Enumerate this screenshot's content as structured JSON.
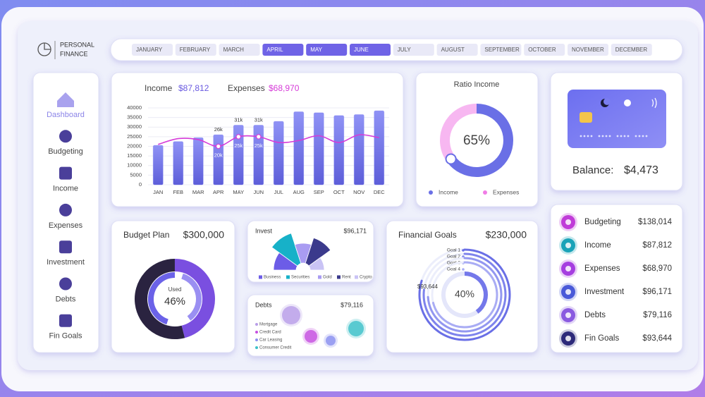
{
  "header": {
    "title_line1": "PERSONAL",
    "title_line2": "FINANCE"
  },
  "months": [
    {
      "label": "JANUARY",
      "selected": false
    },
    {
      "label": "FEBRUARY",
      "selected": false
    },
    {
      "label": "MARCH",
      "selected": false
    },
    {
      "label": "APRIL",
      "selected": true
    },
    {
      "label": "MAY",
      "selected": true
    },
    {
      "label": "JUNE",
      "selected": true
    },
    {
      "label": "JULY",
      "selected": false
    },
    {
      "label": "AUGUST",
      "selected": false
    },
    {
      "label": "SEPTEMBER",
      "selected": false
    },
    {
      "label": "OCTOBER",
      "selected": false
    },
    {
      "label": "NOVEMBER",
      "selected": false
    },
    {
      "label": "DECEMBER",
      "selected": false
    }
  ],
  "nav": [
    {
      "label": "Dashboard",
      "active": true
    },
    {
      "label": "Budgeting",
      "active": false
    },
    {
      "label": "Income",
      "active": false
    },
    {
      "label": "Expenses",
      "active": false
    },
    {
      "label": "Investment",
      "active": false
    },
    {
      "label": "Debts",
      "active": false
    },
    {
      "label": "Fin Goals",
      "active": false
    }
  ],
  "income_chart": {
    "type": "bar",
    "income_total": "$87,812",
    "expenses_total": "$68,970",
    "categories": [
      "JAN",
      "FEB",
      "MAR",
      "APR",
      "MAY",
      "JUN",
      "JUL",
      "AUG",
      "SEP",
      "OCT",
      "NOV",
      "DEC"
    ],
    "series": [
      {
        "name": "Income",
        "type": "bar",
        "color": "#6d6ff0",
        "values": [
          20500,
          22500,
          24500,
          26000,
          31000,
          31000,
          33000,
          38000,
          37500,
          36000,
          36500,
          38500
        ],
        "value_labels": [
          null,
          null,
          null,
          "26k",
          "31k",
          "31k",
          null,
          null,
          null,
          null,
          null,
          null
        ]
      },
      {
        "name": "Expenses",
        "type": "line",
        "color": "#d63bd8",
        "values": [
          21000,
          24000,
          23500,
          20000,
          25000,
          25000,
          22000,
          23000,
          25500,
          22000,
          26000,
          24500
        ],
        "value_labels": [
          null,
          null,
          null,
          "20k",
          "25k",
          "25k",
          null,
          null,
          null,
          null,
          null,
          null
        ]
      }
    ],
    "ylim": [
      0,
      40000
    ],
    "yticks": [
      0,
      5000,
      10000,
      15000,
      20000,
      25000,
      30000,
      35000,
      40000
    ],
    "grid": true
  },
  "ratio": {
    "type": "donut",
    "title": "Ratio Income",
    "value": 65,
    "value_label": "65%",
    "legend": [
      {
        "name": "Income",
        "color": "#6a6fe6"
      },
      {
        "name": "Expenses",
        "color": "#f07ce6"
      }
    ]
  },
  "card": {
    "balance_label": "Balance:",
    "balance_value": "$4,473"
  },
  "budget_plan": {
    "type": "donut",
    "title": "Budget Plan",
    "total": "$300,000",
    "center_label": "Used",
    "value": 46,
    "value_label": "46%",
    "color": "#7a4fe0"
  },
  "invest": {
    "type": "radial-bar",
    "title": "Invest",
    "total": "$96,171",
    "categories": [
      "Business",
      "Securities",
      "Gold",
      "Rent",
      "Crypto"
    ],
    "values": [
      42,
      55,
      38,
      48,
      30
    ],
    "colors": [
      "#6c5ce7",
      "#17b1c8",
      "#a99cf2",
      "#3b3a8c",
      "#c9c3f5"
    ]
  },
  "debts": {
    "type": "bubble",
    "title": "Debts",
    "total": "$79,116",
    "categories": [
      "Mortgage",
      "Credit Card",
      "Car Leasing",
      "Consumer Credit"
    ],
    "values": [
      13,
      9,
      7,
      11
    ],
    "colors": [
      "#b89ee8",
      "#c54fe0",
      "#8a8ef0",
      "#3cc1c9"
    ]
  },
  "financial_goals": {
    "type": "radial",
    "title": "Financial Goals",
    "total": "$230,000",
    "goals": [
      "Goal 1",
      "Goal 2",
      "Goal 3",
      "Goal 4"
    ],
    "goal_values": [
      80,
      77,
      74,
      71
    ],
    "saved": "$93,644",
    "value": 40,
    "value_label": "40%"
  },
  "summary": [
    {
      "label": "Budgeting",
      "value": "$138,014",
      "color": "#c03cd8"
    },
    {
      "label": "Income",
      "value": "$87,812",
      "color": "#1aa3b8"
    },
    {
      "label": "Expenses",
      "value": "$68,970",
      "color": "#a63ee0"
    },
    {
      "label": "Investment",
      "value": "$96,171",
      "color": "#4a5ad8"
    },
    {
      "label": "Debts",
      "value": "$79,116",
      "color": "#8a5ae0"
    },
    {
      "label": "Fin Goals",
      "value": "$93,644",
      "color": "#2d2a7a"
    }
  ]
}
